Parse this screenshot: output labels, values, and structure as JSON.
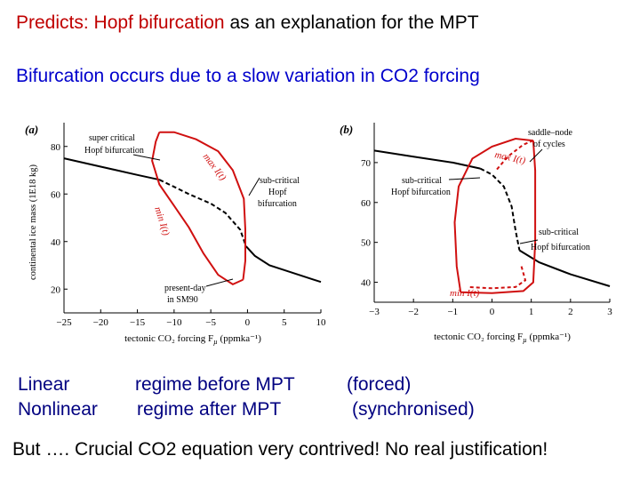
{
  "slide": {
    "title_highlight": "Predicts: Hopf bifurcation",
    "title_rest": " as an explanation for the MPT",
    "subtitle": "Bifurcation occurs due to a slow variation in  CO2 forcing",
    "rows": [
      {
        "col1": "Linear",
        "col2": "regime before MPT",
        "col3": "(forced)"
      },
      {
        "col1": "Nonlinear",
        "col2": "regime after MPT",
        "col3": "(synchronised)"
      }
    ],
    "footer": "But …. Crucial CO2 equation very contrived!  No real justification!"
  },
  "chart_data": [
    {
      "type": "line",
      "panel_label": "(a)",
      "xlabel": "tectonic CO₂ forcing F",
      "xlabel_sub": "µ",
      "xlabel_unit": " (ppmka⁻¹)",
      "ylabel": "continental ice mass (1E18 kg)",
      "xlim": [
        -25,
        10
      ],
      "ylim": [
        10,
        90
      ],
      "x_ticks": [
        -25,
        -20,
        -15,
        -10,
        -5,
        0,
        5,
        10
      ],
      "y_ticks": [
        20,
        40,
        60,
        80
      ],
      "annotations": {
        "super_l1": "super critical",
        "super_l2": "Hopf bifurcation",
        "sub_l1": "sub-critical",
        "sub_l2": "Hopf",
        "sub_l3": "bifurcation",
        "pres_l1": "present-day",
        "pres_l2": "in SM90",
        "max_label": "max I(t)",
        "min_label": "min I(t)"
      },
      "series": {
        "equilibrium": [
          [
            -25,
            75
          ],
          [
            -20,
            71.5
          ],
          [
            -15,
            68
          ],
          [
            -12,
            66
          ],
          [
            -10,
            63
          ],
          [
            -8,
            60
          ],
          [
            -5,
            56
          ],
          [
            -3,
            52
          ],
          [
            -1,
            45
          ],
          [
            -0.2,
            38
          ],
          [
            1,
            34
          ],
          [
            3,
            30
          ],
          [
            5,
            28
          ],
          [
            7,
            26
          ],
          [
            9,
            24
          ],
          [
            10,
            23
          ]
        ],
        "max_branch": [
          [
            -12,
            86
          ],
          [
            -10,
            86
          ],
          [
            -7,
            83
          ],
          [
            -4,
            78
          ],
          [
            -2,
            70
          ],
          [
            -0.5,
            58
          ],
          [
            -0.3,
            45
          ],
          [
            -0.3,
            32
          ],
          [
            -0.6,
            24
          ]
        ],
        "min_branch": [
          [
            -0.6,
            24
          ],
          [
            -2,
            22
          ],
          [
            -4,
            26
          ],
          [
            -6,
            35
          ],
          [
            -8,
            46
          ],
          [
            -10,
            55
          ],
          [
            -12,
            64
          ],
          [
            -13,
            74
          ],
          [
            -12.5,
            82
          ],
          [
            -12,
            86
          ]
        ]
      }
    },
    {
      "type": "line",
      "panel_label": "(b)",
      "xlabel": "tectonic CO₂ forcing F",
      "xlabel_sub": "µ",
      "xlabel_unit": " (ppmka⁻¹)",
      "xlim": [
        -3,
        3
      ],
      "ylim": [
        35,
        80
      ],
      "x_ticks": [
        -3,
        -2,
        -1,
        0,
        1,
        2,
        3
      ],
      "y_ticks": [
        40,
        50,
        60,
        70
      ],
      "annotations": {
        "saddle_l1": "saddle–node",
        "saddle_l2": "of cycles",
        "sub_a_l1": "sub-critical",
        "sub_a_l2": "Hopf bifurcation",
        "sub_b_l1": "sub-critical",
        "sub_b_l2": "Hopf bifurcation",
        "max_label": "max I(t)",
        "min_label": "min I(t)"
      },
      "series": {
        "equilibrium": [
          [
            -3,
            73
          ],
          [
            -2,
            71.5
          ],
          [
            -1,
            70
          ],
          [
            -0.3,
            68.5
          ],
          [
            0,
            67
          ],
          [
            0.3,
            64
          ],
          [
            0.5,
            59
          ],
          [
            0.6,
            53
          ],
          [
            0.7,
            48
          ],
          [
            1.2,
            45
          ],
          [
            2,
            42
          ],
          [
            3,
            39
          ]
        ],
        "max_solid": [
          [
            -0.8,
            37.5
          ],
          [
            -0.9,
            44
          ],
          [
            -0.95,
            55
          ],
          [
            -0.85,
            64
          ],
          [
            -0.5,
            71
          ],
          [
            0,
            74
          ],
          [
            0.6,
            76
          ],
          [
            1.05,
            75.5
          ]
        ],
        "max_dashed": [
          [
            1.05,
            75.5
          ],
          [
            0.8,
            74.5
          ],
          [
            0.4,
            71.5
          ],
          [
            0.1,
            68
          ]
        ],
        "min_solid": [
          [
            1.05,
            75.5
          ],
          [
            1.1,
            68
          ],
          [
            1.1,
            50
          ],
          [
            1.05,
            40
          ],
          [
            0.8,
            37.8
          ],
          [
            0,
            37.3
          ],
          [
            -0.8,
            37.5
          ]
        ],
        "min_dashed": [
          [
            0.75,
            44
          ],
          [
            0.85,
            40.5
          ],
          [
            0.6,
            38.8
          ],
          [
            0,
            38.5
          ],
          [
            -0.6,
            38.8
          ]
        ]
      }
    }
  ]
}
